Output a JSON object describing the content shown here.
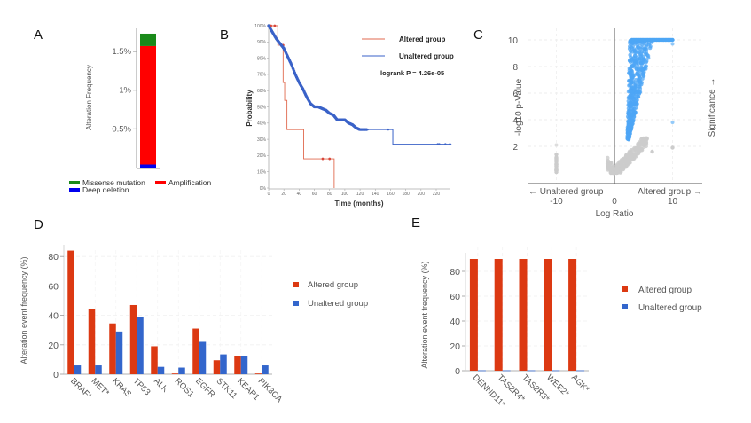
{
  "chart_data": [
    {
      "panel": "A",
      "type": "bar",
      "stacked": true,
      "ylabel": "Alteration Frequency",
      "yticks": [
        "0.5%",
        "1%",
        "1.5%"
      ],
      "ytick_values": [
        0.5,
        1.0,
        1.5
      ],
      "ylim": [
        0,
        1.75
      ],
      "series": [
        {
          "name": "Deep deletion",
          "value": 0.04,
          "color": "#0000ee"
        },
        {
          "name": "Amplification",
          "value": 1.53,
          "color": "#ff0000"
        },
        {
          "name": "Missense mutation",
          "value": 0.16,
          "color": "#1a8a1a"
        }
      ],
      "legend": [
        "Missense mutation",
        "Amplification",
        "Deep deletion"
      ],
      "legend_placement": "bottom"
    },
    {
      "panel": "B",
      "type": "line",
      "subtype": "kaplan-meier",
      "xlabel": "Time (months)",
      "ylabel": "Probability",
      "xlim": [
        0,
        240
      ],
      "ylim": [
        0,
        100
      ],
      "xticks": [
        0,
        20,
        40,
        60,
        80,
        100,
        120,
        140,
        160,
        180,
        200,
        220
      ],
      "yticks": [
        "0%",
        "10%",
        "20%",
        "30%",
        "40%",
        "50%",
        "60%",
        "70%",
        "80%",
        "90%",
        "100%"
      ],
      "annotation": "logrank P = 4.26e-05",
      "legend_placement": "top-right",
      "series": [
        {
          "name": "Altered group",
          "color": "#e06a4f",
          "steps": [
            [
              0,
              100
            ],
            [
              12,
              100
            ],
            [
              12,
              88
            ],
            [
              19,
              88
            ],
            [
              19,
              65
            ],
            [
              21,
              65
            ],
            [
              21,
              54
            ],
            [
              24,
              54
            ],
            [
              24,
              36
            ],
            [
              46,
              36
            ],
            [
              46,
              18
            ],
            [
              86,
              18
            ],
            [
              86,
              0
            ]
          ],
          "censors": [
            [
              3,
              100
            ],
            [
              8,
              100
            ],
            [
              19,
              88
            ],
            [
              71,
              18
            ],
            [
              80,
              18
            ]
          ]
        },
        {
          "name": "Unaltered group",
          "color": "#3a62c8",
          "points": [
            [
              0,
              100
            ],
            [
              5,
              96
            ],
            [
              10,
              92
            ],
            [
              15,
              89
            ],
            [
              20,
              86
            ],
            [
              25,
              81
            ],
            [
              30,
              76
            ],
            [
              35,
              70
            ],
            [
              40,
              65
            ],
            [
              45,
              61
            ],
            [
              50,
              56
            ],
            [
              55,
              52
            ],
            [
              60,
              50
            ],
            [
              65,
              50
            ],
            [
              70,
              49
            ],
            [
              75,
              48
            ],
            [
              80,
              46
            ],
            [
              85,
              45
            ],
            [
              90,
              42
            ],
            [
              95,
              42
            ],
            [
              100,
              42
            ],
            [
              105,
              40
            ],
            [
              110,
              39
            ],
            [
              115,
              37
            ],
            [
              120,
              36
            ],
            [
              130,
              36
            ],
            [
              140,
              36
            ],
            [
              157,
              36
            ],
            [
              163,
              36
            ],
            [
              163,
              27
            ],
            [
              240,
              27
            ]
          ],
          "censors": [
            [
              100,
              42
            ],
            [
              110,
              39
            ],
            [
              118,
              36
            ],
            [
              122,
              36
            ],
            [
              130,
              36
            ],
            [
              157,
              36
            ],
            [
              222,
              27
            ],
            [
              224,
              27
            ],
            [
              232,
              27
            ],
            [
              238,
              27
            ]
          ]
        }
      ]
    },
    {
      "panel": "C",
      "type": "scatter",
      "subtype": "volcano",
      "xlabel": "Log Ratio",
      "ylabel": "-log10 p-Value",
      "right_label": "Significance →",
      "x_left_note": "← Unaltered group",
      "x_right_note": "Altered group →",
      "xticks": [
        -10,
        0,
        10
      ],
      "yticks": [
        2,
        4,
        6,
        8,
        10
      ],
      "xlim": [
        -15,
        15
      ],
      "ylim": [
        0,
        10.5
      ],
      "significant_color": "#4da6f5",
      "nonsignificant_color": "#cccccc",
      "grid": true
    },
    {
      "panel": "D",
      "type": "bar",
      "ylabel": "Alteration event frequency (%)",
      "categories": [
        "BRAF*",
        "MET*",
        "KRAS",
        "TP53",
        "ALK",
        "ROS1",
        "EGFR",
        "STK11",
        "KEAP1",
        "PIK3CA"
      ],
      "series": [
        {
          "name": "Altered group",
          "color": "#dc3912",
          "values": [
            84,
            44,
            34.5,
            47,
            19,
            0.5,
            31,
            9.5,
            12.5,
            0.5
          ]
        },
        {
          "name": "Unaltered group",
          "color": "#3366cc",
          "values": [
            6,
            6,
            29,
            39,
            5,
            4.5,
            22,
            13.5,
            12.5,
            6
          ]
        }
      ],
      "yticks": [
        0,
        20,
        40,
        60,
        80
      ],
      "ylim": [
        0,
        88
      ],
      "grid": true,
      "legend_placement": "right"
    },
    {
      "panel": "E",
      "type": "bar",
      "ylabel": "Alteration event frequency (%)",
      "categories": [
        "DENND11*",
        "TAS2R4*",
        "TAS2R3*",
        "WEE2*",
        "AGK*"
      ],
      "series": [
        {
          "name": "Altered group",
          "color": "#dc3912",
          "values": [
            90,
            90,
            90,
            90,
            90
          ]
        },
        {
          "name": "Unaltered group",
          "color": "#3366cc",
          "values": [
            0.3,
            0.3,
            0.3,
            0.3,
            0.3
          ]
        }
      ],
      "yticks": [
        0,
        20,
        40,
        60,
        80
      ],
      "ylim": [
        0,
        95
      ],
      "grid": true,
      "legend_placement": "right"
    }
  ],
  "panels": {
    "A": {
      "letter": "A"
    },
    "B": {
      "letter": "B"
    },
    "C": {
      "letter": "C"
    },
    "D": {
      "letter": "D"
    },
    "E": {
      "letter": "E"
    }
  }
}
